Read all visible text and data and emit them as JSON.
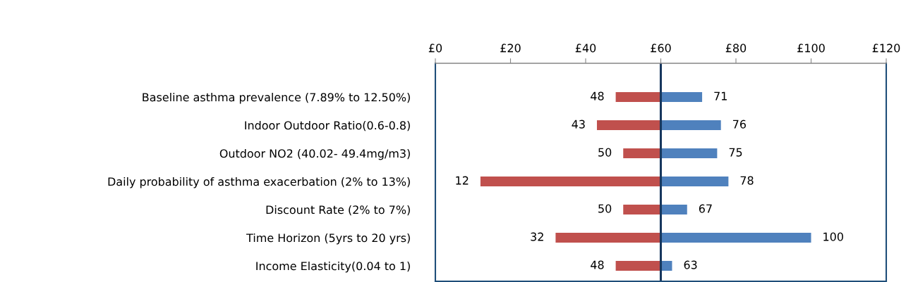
{
  "chart_data": {
    "type": "bar",
    "orientation": "horizontal",
    "categories": [
      "Baseline asthma prevalence (7.89% to 12.50%)",
      "Indoor Outdoor Ratio(0.6-0.8)",
      "Outdoor NO2 (40.02- 49.4mg/m3)",
      "Daily probability of asthma exacerbation (2% to 13%)",
      "Discount Rate (2% to 7%)",
      "Time Horizon (5yrs to 20 yrs)",
      "Income Elasticity(0.04 to 1)"
    ],
    "series": [
      {
        "color": "#c0504d",
        "base": [
          60,
          60,
          60,
          60,
          60,
          60,
          60
        ],
        "values": [
          -12,
          -17,
          -10,
          -48,
          -10,
          -28,
          -12
        ],
        "value_labels": [
          "48",
          "43",
          "50",
          "12",
          "50",
          "32",
          "48"
        ]
      },
      {
        "color": "#4f81bd",
        "base": [
          60,
          60,
          60,
          60,
          60,
          60,
          60
        ],
        "values": [
          11,
          16,
          15,
          18,
          7,
          40,
          3
        ],
        "value_labels": [
          "71",
          "76",
          "75",
          "78",
          "67",
          "100",
          "63"
        ]
      }
    ],
    "xlim": [
      0,
      120
    ],
    "xticks": [
      {
        "value": 0,
        "label": "£0"
      },
      {
        "value": 20,
        "label": "£20"
      },
      {
        "value": 40,
        "label": "£40"
      },
      {
        "value": 60,
        "label": "£60"
      },
      {
        "value": 80,
        "label": "£80"
      },
      {
        "value": 100,
        "label": "£100"
      },
      {
        "value": 120,
        "label": "£120"
      }
    ],
    "ref_lines": [
      {
        "axis": "x",
        "value": 60,
        "color": "#17375e"
      }
    ],
    "grid": false
  }
}
